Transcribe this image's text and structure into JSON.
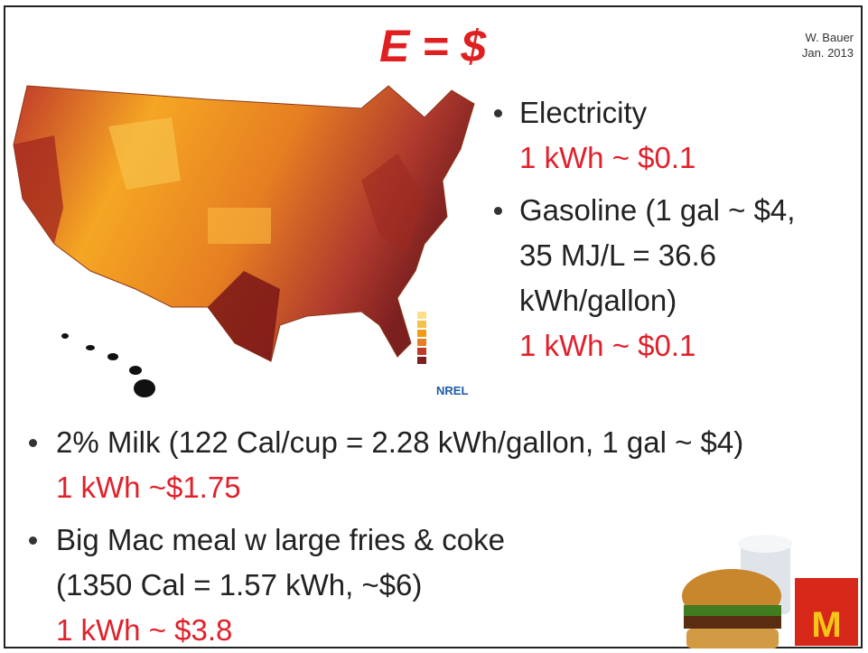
{
  "header": {
    "title": "E = $",
    "author": "W. Bauer",
    "date": "Jan. 2013"
  },
  "map": {
    "logo": "NREL"
  },
  "bullets_right": [
    {
      "lines": [
        "Electricity"
      ],
      "price": "1 kWh ~ $0.1"
    },
    {
      "lines": [
        "Gasoline (1 gal ~ $4,",
        "35 MJ/L = 36.6",
        "kWh/gallon)"
      ],
      "price": "1 kWh ~ $0.1"
    }
  ],
  "bullets_bottom": [
    {
      "lines": [
        "2% Milk (122 Cal/cup = 2.28 kWh/gallon, 1 gal ~ $4)"
      ],
      "price": "1 kWh ~$1.75"
    },
    {
      "lines": [
        "Big Mac meal w large fries & coke",
        "(1350 Cal = 1.57 kWh, ~$6)"
      ],
      "price": "1 kWh ~ $3.8"
    }
  ]
}
